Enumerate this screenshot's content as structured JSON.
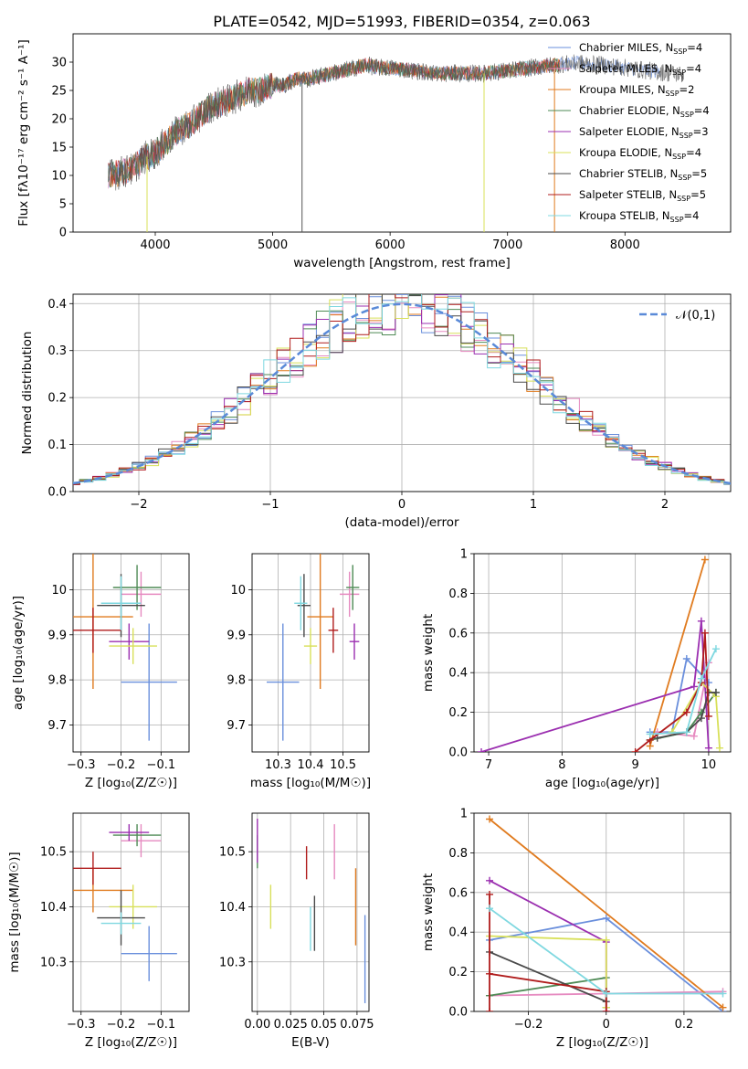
{
  "title": "PLATE=0542, MJD=51993, FIBERID=0354, z=0.063",
  "colors": {
    "Chabrier MILES": "#6a8fdc",
    "Salpeter MILES": "#e68ac0",
    "Kroupa MILES": "#e07b1f",
    "Chabrier ELODIE": "#4e8a55",
    "Salpeter ELODIE": "#9b2fb0",
    "Kroupa ELODIE": "#d8e05a",
    "Chabrier STELIB": "#4a4a4a",
    "Salpeter STELIB": "#b01c1c",
    "Kroupa STELIB": "#7fd8e0",
    "normal": "#5a8ad8",
    "grid": "#b0b0b0"
  },
  "chart_data": [
    {
      "id": "spectrum",
      "type": "line",
      "xlabel": "wavelength [Angstrom, rest frame]",
      "ylabel": "Flux [fλ10⁻¹⁷ erg cm⁻² s⁻¹ A⁻¹]",
      "xlim": [
        3300,
        8900
      ],
      "ylim": [
        0,
        35
      ],
      "xticks": [
        4000,
        5000,
        6000,
        7000,
        8000
      ],
      "yticks": [
        0,
        5,
        10,
        15,
        20,
        25,
        30
      ],
      "continuum": [
        [
          3600,
          10
        ],
        [
          3700,
          10.5
        ],
        [
          3800,
          11
        ],
        [
          3900,
          13
        ],
        [
          4000,
          14
        ],
        [
          4100,
          16
        ],
        [
          4200,
          18
        ],
        [
          4300,
          19
        ],
        [
          4400,
          21
        ],
        [
          4500,
          22.5
        ],
        [
          4600,
          23
        ],
        [
          4700,
          24
        ],
        [
          4800,
          25
        ],
        [
          4900,
          25
        ],
        [
          5000,
          26
        ],
        [
          5100,
          26
        ],
        [
          5200,
          27
        ],
        [
          5300,
          27
        ],
        [
          5400,
          27.5
        ],
        [
          5500,
          28
        ],
        [
          5600,
          28.5
        ],
        [
          5700,
          29
        ],
        [
          5800,
          29.5
        ],
        [
          5900,
          29
        ],
        [
          6000,
          29
        ],
        [
          6200,
          28.5
        ],
        [
          6400,
          28
        ],
        [
          6600,
          28
        ],
        [
          6800,
          28
        ],
        [
          7000,
          28.5
        ],
        [
          7200,
          29
        ],
        [
          7400,
          29.5
        ],
        [
          7600,
          29.8
        ],
        [
          7800,
          29.5
        ],
        [
          8000,
          29
        ],
        [
          8200,
          28.5
        ],
        [
          8400,
          28
        ],
        [
          8500,
          27.8
        ]
      ],
      "legend": [
        {
          "name": "Chabrier MILES",
          "nssp": "4"
        },
        {
          "name": "Salpeter MILES",
          "nssp": "4"
        },
        {
          "name": "Kroupa MILES",
          "nssp": "2"
        },
        {
          "name": "Chabrier ELODIE",
          "nssp": "4"
        },
        {
          "name": "Salpeter ELODIE",
          "nssp": "3"
        },
        {
          "name": "Kroupa ELODIE",
          "nssp": "4"
        },
        {
          "name": "Chabrier STELIB",
          "nssp": "5"
        },
        {
          "name": "Salpeter STELIB",
          "nssp": "5"
        },
        {
          "name": "Kroupa STELIB",
          "nssp": "4"
        }
      ],
      "legend_placement": "right"
    },
    {
      "id": "residuals",
      "type": "histogram",
      "xlabel": "(data-model)/error",
      "ylabel": "Normed distribution",
      "xlim": [
        -2.5,
        2.5
      ],
      "ylim": [
        0,
        0.42
      ],
      "xticks": [
        -2,
        -1,
        0,
        1,
        2
      ],
      "yticks": [
        0.0,
        0.1,
        0.2,
        0.3,
        0.4
      ],
      "bin_width": 0.1,
      "reference": {
        "name": "𝒩(0,1)",
        "style": "dashed"
      },
      "legend_placement": "top-right"
    },
    {
      "id": "age_vs_Z",
      "type": "errorbar",
      "xlabel": "Z [log₁₀(Z/Z☉)]",
      "ylabel": "age [log₁₀(age/yr)]",
      "xlim": [
        -0.32,
        -0.03
      ],
      "ylim": [
        9.64,
        10.08
      ],
      "xticks": [
        -0.3,
        -0.2,
        -0.1
      ],
      "yticks": [
        9.7,
        9.8,
        9.9,
        10.0
      ],
      "points": [
        {
          "model": "Chabrier MILES",
          "x": -0.13,
          "xerr": 0.07,
          "y": 9.795,
          "yerr": 0.13
        },
        {
          "model": "Salpeter MILES",
          "x": -0.15,
          "xerr": 0.05,
          "y": 9.99,
          "yerr": 0.05
        },
        {
          "model": "Kroupa MILES",
          "x": -0.27,
          "xerr": 0.1,
          "y": 9.94,
          "yerr": 0.16
        },
        {
          "model": "Chabrier ELODIE",
          "x": -0.16,
          "xerr": 0.06,
          "y": 10.005,
          "yerr": 0.05
        },
        {
          "model": "Salpeter ELODIE",
          "x": -0.18,
          "xerr": 0.05,
          "y": 9.885,
          "yerr": 0.04
        },
        {
          "model": "Kroupa ELODIE",
          "x": -0.17,
          "xerr": 0.06,
          "y": 9.875,
          "yerr": 0.04
        },
        {
          "model": "Chabrier STELIB",
          "x": -0.2,
          "xerr": 0.06,
          "y": 9.965,
          "yerr": 0.07
        },
        {
          "model": "Salpeter STELIB",
          "x": -0.27,
          "xerr": 0.07,
          "y": 9.91,
          "yerr": 0.05
        },
        {
          "model": "Kroupa STELIB",
          "x": -0.2,
          "xerr": 0.05,
          "y": 9.97,
          "yerr": 0.06
        }
      ]
    },
    {
      "id": "age_vs_mass",
      "type": "errorbar",
      "xlabel": "mass [log₁₀(M/M☉)]",
      "ylabel": "",
      "xlim": [
        10.22,
        10.58
      ],
      "ylim": [
        9.64,
        10.08
      ],
      "xticks": [
        10.3,
        10.4,
        10.5
      ],
      "yticks": [
        9.7,
        9.8,
        9.9,
        10.0
      ],
      "points": [
        {
          "model": "Chabrier MILES",
          "x": 10.315,
          "xerr": 0.05,
          "y": 9.795,
          "yerr": 0.13
        },
        {
          "model": "Salpeter MILES",
          "x": 10.52,
          "xerr": 0.03,
          "y": 9.99,
          "yerr": 0.05
        },
        {
          "model": "Kroupa MILES",
          "x": 10.43,
          "xerr": 0.04,
          "y": 9.94,
          "yerr": 0.16
        },
        {
          "model": "Chabrier ELODIE",
          "x": 10.53,
          "xerr": 0.02,
          "y": 10.005,
          "yerr": 0.05
        },
        {
          "model": "Salpeter ELODIE",
          "x": 10.535,
          "xerr": 0.015,
          "y": 9.885,
          "yerr": 0.04
        },
        {
          "model": "Kroupa ELODIE",
          "x": 10.4,
          "xerr": 0.02,
          "y": 9.875,
          "yerr": 0.04
        },
        {
          "model": "Chabrier STELIB",
          "x": 10.38,
          "xerr": 0.02,
          "y": 9.965,
          "yerr": 0.07
        },
        {
          "model": "Salpeter STELIB",
          "x": 10.47,
          "xerr": 0.015,
          "y": 9.91,
          "yerr": 0.05
        },
        {
          "model": "Kroupa STELIB",
          "x": 10.37,
          "xerr": 0.02,
          "y": 9.97,
          "yerr": 0.06
        }
      ]
    },
    {
      "id": "weight_vs_age",
      "type": "line",
      "xlabel": "age [log₁₀(age/yr)]",
      "ylabel": "mass weight",
      "xlim": [
        6.8,
        10.3
      ],
      "ylim": [
        0,
        1.0
      ],
      "xticks": [
        7,
        8,
        9,
        10
      ],
      "yticks": [
        0.0,
        0.2,
        0.4,
        0.6,
        0.8,
        1.0
      ],
      "series": [
        {
          "model": "Chabrier MILES",
          "points": [
            [
              9.2,
              0.1
            ],
            [
              9.5,
              0.1
            ],
            [
              9.7,
              0.47
            ],
            [
              10.0,
              0.35
            ]
          ]
        },
        {
          "model": "Salpeter MILES",
          "points": [
            [
              9.3,
              0.1
            ],
            [
              9.8,
              0.08
            ],
            [
              10.0,
              0.45
            ]
          ]
        },
        {
          "model": "Kroupa MILES",
          "points": [
            [
              9.2,
              0.03
            ],
            [
              9.95,
              0.97
            ]
          ]
        },
        {
          "model": "Chabrier ELODIE",
          "points": [
            [
              9.2,
              0.06
            ],
            [
              9.7,
              0.1
            ],
            [
              9.9,
              0.2
            ],
            [
              10.1,
              0.3
            ]
          ]
        },
        {
          "model": "Salpeter ELODIE",
          "points": [
            [
              6.9,
              0.0
            ],
            [
              9.8,
              0.33
            ],
            [
              9.9,
              0.66
            ],
            [
              10.0,
              0.02
            ]
          ]
        },
        {
          "model": "Kroupa ELODIE",
          "points": [
            [
              9.5,
              0.1
            ],
            [
              9.9,
              0.35
            ],
            [
              10.1,
              0.28
            ],
            [
              10.15,
              0.02
            ]
          ]
        },
        {
          "model": "Chabrier STELIB",
          "points": [
            [
              9.3,
              0.07
            ],
            [
              9.7,
              0.1
            ],
            [
              9.9,
              0.17
            ],
            [
              10.0,
              0.3
            ],
            [
              10.1,
              0.3
            ]
          ]
        },
        {
          "model": "Salpeter STELIB",
          "points": [
            [
              9.0,
              0.0
            ],
            [
              9.2,
              0.06
            ],
            [
              9.7,
              0.2
            ],
            [
              9.9,
              0.35
            ],
            [
              9.95,
              0.6
            ],
            [
              10.0,
              0.18
            ]
          ]
        },
        {
          "model": "Kroupa STELIB",
          "points": [
            [
              9.2,
              0.09
            ],
            [
              9.7,
              0.1
            ],
            [
              9.9,
              0.37
            ],
            [
              10.1,
              0.52
            ]
          ]
        }
      ]
    },
    {
      "id": "mass_vs_Z",
      "type": "errorbar",
      "xlabel": "Z [log₁₀(Z/Z☉)]",
      "ylabel": "mass [log₁₀(M/M☉)]",
      "xlim": [
        -0.32,
        -0.03
      ],
      "ylim": [
        10.21,
        10.57
      ],
      "xticks": [
        -0.3,
        -0.2,
        -0.1
      ],
      "yticks": [
        10.3,
        10.4,
        10.5
      ],
      "points": [
        {
          "model": "Chabrier MILES",
          "x": -0.13,
          "xerr": 0.07,
          "y": 10.315,
          "yerr": 0.05
        },
        {
          "model": "Salpeter MILES",
          "x": -0.15,
          "xerr": 0.05,
          "y": 10.52,
          "yerr": 0.03
        },
        {
          "model": "Kroupa MILES",
          "x": -0.27,
          "xerr": 0.1,
          "y": 10.43,
          "yerr": 0.04
        },
        {
          "model": "Chabrier ELODIE",
          "x": -0.16,
          "xerr": 0.06,
          "y": 10.53,
          "yerr": 0.02
        },
        {
          "model": "Salpeter ELODIE",
          "x": -0.18,
          "xerr": 0.05,
          "y": 10.535,
          "yerr": 0.015
        },
        {
          "model": "Kroupa ELODIE",
          "x": -0.17,
          "xerr": 0.06,
          "y": 10.4,
          "yerr": 0.04
        },
        {
          "model": "Chabrier STELIB",
          "x": -0.2,
          "xerr": 0.06,
          "y": 10.38,
          "yerr": 0.05
        },
        {
          "model": "Salpeter STELIB",
          "x": -0.27,
          "xerr": 0.07,
          "y": 10.47,
          "yerr": 0.03
        },
        {
          "model": "Kroupa STELIB",
          "x": -0.2,
          "xerr": 0.05,
          "y": 10.37,
          "yerr": 0.02
        }
      ]
    },
    {
      "id": "mass_vs_EBV",
      "type": "errorbar",
      "xlabel": "E(B-V)",
      "ylabel": "",
      "xlim": [
        -0.004,
        0.084
      ],
      "ylim": [
        10.21,
        10.57
      ],
      "xticks": [
        0.0,
        0.025,
        0.05,
        0.075
      ],
      "xticklabels": [
        "0.00",
        "0.025",
        "0.05",
        "0.075"
      ],
      "yticks": [
        10.3,
        10.4,
        10.5
      ],
      "points": [
        {
          "model": "Chabrier MILES",
          "x": 0.081,
          "y": 10.305,
          "yerr": 0.08
        },
        {
          "model": "Salpeter MILES",
          "x": 0.058,
          "y": 10.5,
          "yerr": 0.05
        },
        {
          "model": "Kroupa MILES",
          "x": 0.074,
          "y": 10.4,
          "yerr": 0.07
        },
        {
          "model": "Chabrier ELODIE",
          "x": 0.0,
          "y": 10.5,
          "yerr": 0.03
        },
        {
          "model": "Salpeter ELODIE",
          "x": 0.0,
          "y": 10.52,
          "yerr": 0.04
        },
        {
          "model": "Kroupa ELODIE",
          "x": 0.01,
          "y": 10.4,
          "yerr": 0.04
        },
        {
          "model": "Chabrier STELIB",
          "x": 0.043,
          "y": 10.37,
          "yerr": 0.05
        },
        {
          "model": "Salpeter STELIB",
          "x": 0.037,
          "y": 10.48,
          "yerr": 0.03
        },
        {
          "model": "Kroupa STELIB",
          "x": 0.04,
          "y": 10.36,
          "yerr": 0.04
        }
      ]
    },
    {
      "id": "weight_vs_Z",
      "type": "line",
      "xlabel": "Z [log₁₀(Z/Z☉)]",
      "ylabel": "mass weight",
      "xlim": [
        -0.34,
        0.32
      ],
      "ylim": [
        0,
        1.0
      ],
      "xticks": [
        -0.2,
        0.0,
        0.2
      ],
      "yticks": [
        0.0,
        0.2,
        0.4,
        0.6,
        0.8,
        1.0
      ],
      "series": [
        {
          "model": "Chabrier MILES",
          "points": [
            [
              -0.3,
              0.36
            ],
            [
              0.0,
              0.47
            ],
            [
              0.3,
              0.0
            ]
          ]
        },
        {
          "model": "Salpeter MILES",
          "points": [
            [
              -0.3,
              0.08
            ],
            [
              0.0,
              0.09
            ],
            [
              0.3,
              0.1
            ]
          ]
        },
        {
          "model": "Kroupa MILES",
          "points": [
            [
              -0.3,
              0.97
            ],
            [
              0.3,
              0.02
            ]
          ]
        },
        {
          "model": "Chabrier ELODIE",
          "points": [
            [
              -0.3,
              0.08
            ],
            [
              0.0,
              0.17
            ],
            [
              0.0,
              0.02
            ]
          ]
        },
        {
          "model": "Salpeter ELODIE",
          "points": [
            [
              -0.3,
              0.66
            ],
            [
              0.0,
              0.35
            ],
            [
              0.0,
              0.0
            ]
          ]
        },
        {
          "model": "Kroupa ELODIE",
          "points": [
            [
              -0.3,
              0.38
            ],
            [
              0.0,
              0.36
            ],
            [
              0.0,
              0.02
            ]
          ]
        },
        {
          "model": "Chabrier STELIB",
          "points": [
            [
              -0.3,
              0.3
            ],
            [
              0.0,
              0.05
            ]
          ]
        },
        {
          "model": "Salpeter STELIB",
          "points": [
            [
              -0.3,
              0.59
            ],
            [
              -0.3,
              0.0
            ],
            [
              -0.3,
              0.19
            ],
            [
              0.0,
              0.1
            ],
            [
              0.0,
              0.0
            ]
          ]
        },
        {
          "model": "Kroupa STELIB",
          "points": [
            [
              -0.3,
              0.52
            ],
            [
              0.0,
              0.09
            ],
            [
              0.3,
              0.09
            ]
          ]
        }
      ]
    }
  ]
}
